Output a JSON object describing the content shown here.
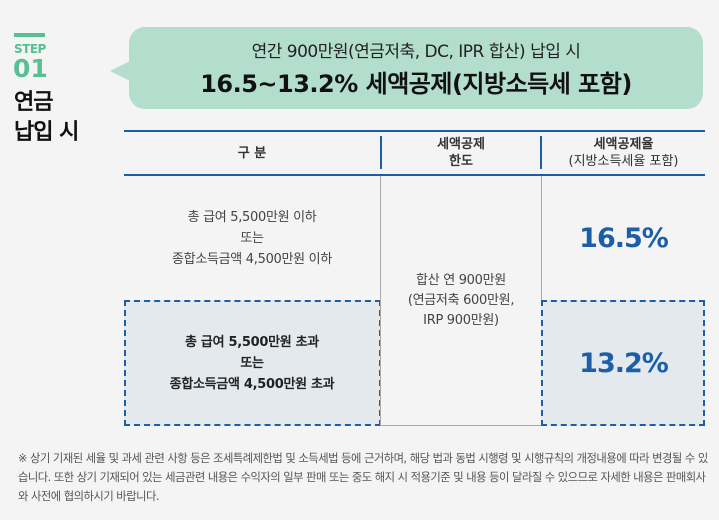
{
  "step": {
    "label": "STEP",
    "number": "01",
    "title_line1": "연금",
    "title_line2": "납입 시"
  },
  "bubble": {
    "line1": "연간 900만원(연금저축, DC, IPR 합산) 납입 시",
    "line2": "16.5~13.2% 세액공제(지방소득세 포함)"
  },
  "table": {
    "headers": {
      "col1": "구 분",
      "col2_line1": "세액공제",
      "col2_line2": "한도",
      "col3_line1": "세액공제율",
      "col3_line2": "(지방소득세율 포함)"
    },
    "rows": [
      {
        "line1": "총 급여 5,500만원 이하",
        "line2": "또는",
        "line3": "종합소득금액 4,500만원 이하",
        "rate": "16.5%"
      },
      {
        "line1": "총 급여 5,500만원 초과",
        "line2": "또는",
        "line3": "종합소득금액 4,500만원 초과",
        "rate": "13.2%"
      }
    ],
    "limit": {
      "line1": "합산 연 900만원",
      "line2": "(연금저축 600만원,",
      "line3": "IRP 900만원)"
    }
  },
  "notice": "※ 상기 기재된 세율 및 과세 관련 사항 등은 조세특례제한법 및 소득세법 등에 근거하며, 해당 법과 동법 시행령 및 시행규칙의 개정내용에 따라 변경될 수 있습니다. 또한 상기 기재되어 있는 세금관련 내용은 수익자의 일부 판매 또는 중도 해지 시 적용기준 및 내용 등이 달라질 수 있으므로 자세한 내용은 판매회사와 사전에 협의하시기 바랍니다.",
  "colors": {
    "accent_green": "#57bf94",
    "bubble": "#b3dece",
    "accent_blue": "#1c5fa8",
    "highlight_bg": "#e3e9ed"
  }
}
